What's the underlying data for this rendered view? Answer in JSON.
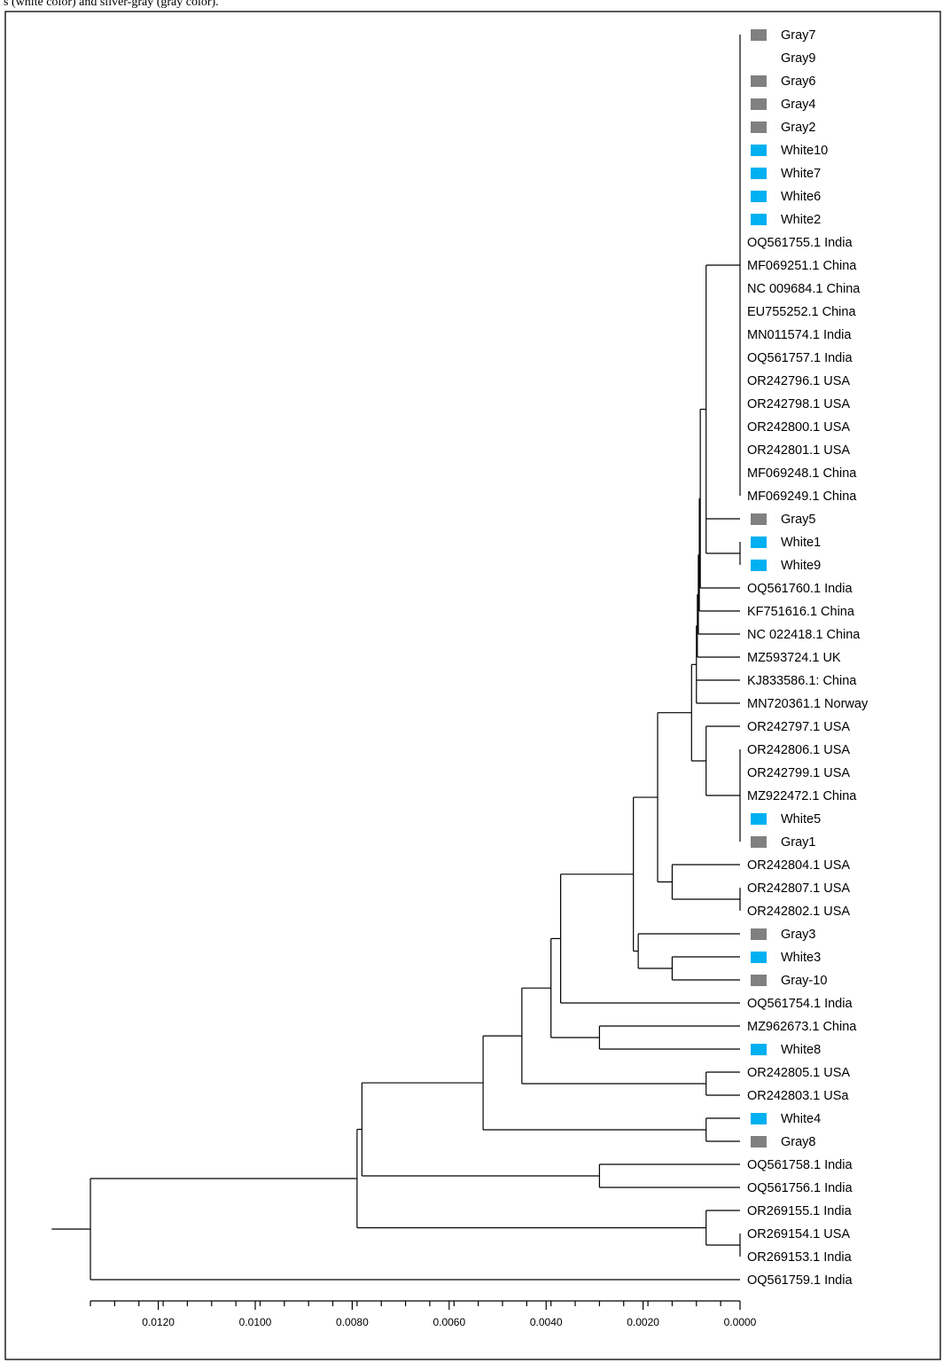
{
  "caption": "s (white color) and silver-gray (gray color).",
  "colors": {
    "gray": "#808080",
    "white": "#00b0f0",
    "line": "#000000",
    "frame": "#000000"
  },
  "tree": {
    "leaves": [
      {
        "id": "Gray7",
        "label": "Gray7",
        "marker": "gray"
      },
      {
        "id": "Gray9",
        "label": "Gray9",
        "marker": "none"
      },
      {
        "id": "Gray6",
        "label": "Gray6",
        "marker": "gray"
      },
      {
        "id": "Gray4",
        "label": "Gray4",
        "marker": "gray"
      },
      {
        "id": "Gray2",
        "label": "Gray2",
        "marker": "gray"
      },
      {
        "id": "White10",
        "label": "White10",
        "marker": "white"
      },
      {
        "id": "White7",
        "label": "White7",
        "marker": "white"
      },
      {
        "id": "White6",
        "label": "White6",
        "marker": "white"
      },
      {
        "id": "White2",
        "label": "White2",
        "marker": "white"
      },
      {
        "id": "OQ561755",
        "label": "OQ561755.1 India",
        "marker": "none"
      },
      {
        "id": "MF069251",
        "label": "MF069251.1 China",
        "marker": "none"
      },
      {
        "id": "NC009684",
        "label": "NC 009684.1 China",
        "marker": "none"
      },
      {
        "id": "EU755252",
        "label": "EU755252.1 China",
        "marker": "none"
      },
      {
        "id": "MN011574",
        "label": "MN011574.1 India",
        "marker": "none"
      },
      {
        "id": "OQ561757",
        "label": "OQ561757.1 India",
        "marker": "none"
      },
      {
        "id": "OR242796",
        "label": "OR242796.1 USA",
        "marker": "none"
      },
      {
        "id": "OR242798",
        "label": "OR242798.1 USA",
        "marker": "none"
      },
      {
        "id": "OR242800",
        "label": "OR242800.1 USA",
        "marker": "none"
      },
      {
        "id": "OR242801",
        "label": "OR242801.1 USA",
        "marker": "none"
      },
      {
        "id": "MF069248",
        "label": "MF069248.1 China",
        "marker": "none"
      },
      {
        "id": "MF069249",
        "label": "MF069249.1 China",
        "marker": "none"
      },
      {
        "id": "Gray5",
        "label": "Gray5",
        "marker": "gray"
      },
      {
        "id": "White1",
        "label": "White1",
        "marker": "white"
      },
      {
        "id": "White9",
        "label": "White9",
        "marker": "white"
      },
      {
        "id": "OQ561760",
        "label": "OQ561760.1 India",
        "marker": "none"
      },
      {
        "id": "KF751616",
        "label": "KF751616.1 China",
        "marker": "none"
      },
      {
        "id": "NC022418",
        "label": "NC 022418.1 China",
        "marker": "none"
      },
      {
        "id": "MZ593724",
        "label": "MZ593724.1 UK",
        "marker": "none"
      },
      {
        "id": "KJ833586",
        "label": "KJ833586.1: China",
        "marker": "none"
      },
      {
        "id": "MN720361",
        "label": "MN720361.1 Norway",
        "marker": "none"
      },
      {
        "id": "OR242797",
        "label": "OR242797.1 USA",
        "marker": "none"
      },
      {
        "id": "OR242806",
        "label": "OR242806.1 USA",
        "marker": "none"
      },
      {
        "id": "OR242799",
        "label": "OR242799.1 USA",
        "marker": "none"
      },
      {
        "id": "MZ922472",
        "label": "MZ922472.1 China",
        "marker": "none"
      },
      {
        "id": "White5",
        "label": "White5",
        "marker": "white"
      },
      {
        "id": "Gray1",
        "label": "Gray1",
        "marker": "gray"
      },
      {
        "id": "OR242804",
        "label": "OR242804.1 USA",
        "marker": "none"
      },
      {
        "id": "OR242807",
        "label": "OR242807.1 USA",
        "marker": "none"
      },
      {
        "id": "OR242802",
        "label": "OR242802.1 USA",
        "marker": "none"
      },
      {
        "id": "Gray3",
        "label": "Gray3",
        "marker": "gray"
      },
      {
        "id": "White3",
        "label": "White3",
        "marker": "white"
      },
      {
        "id": "Gray-10",
        "label": "Gray-10",
        "marker": "gray"
      },
      {
        "id": "OQ561754",
        "label": "OQ561754.1 India",
        "marker": "none"
      },
      {
        "id": "MZ962673",
        "label": "MZ962673.1 China",
        "marker": "none"
      },
      {
        "id": "White8",
        "label": "White8",
        "marker": "white"
      },
      {
        "id": "OR242805",
        "label": "OR242805.1 USA",
        "marker": "none"
      },
      {
        "id": "OR242803",
        "label": "OR242803.1 USa",
        "marker": "none"
      },
      {
        "id": "White4",
        "label": "White4",
        "marker": "white"
      },
      {
        "id": "Gray8",
        "label": "Gray8",
        "marker": "gray"
      },
      {
        "id": "OQ561758",
        "label": "OQ561758.1 India",
        "marker": "none"
      },
      {
        "id": "OQ561756",
        "label": "OQ561756.1 India",
        "marker": "none"
      },
      {
        "id": "OR269155",
        "label": "OR269155.1 India",
        "marker": "none"
      },
      {
        "id": "OR269154",
        "label": "OR269154.1 USA",
        "marker": "none"
      },
      {
        "id": "OR269153",
        "label": "OR269153.1 India",
        "marker": "none"
      },
      {
        "id": "OQ561759",
        "label": "OQ561759.1 India",
        "marker": "none"
      }
    ],
    "nodes": [
      {
        "id": "n_top",
        "dist": 0.0,
        "children": [
          "Gray7",
          "Gray9",
          "Gray6",
          "Gray4",
          "Gray2",
          "White10",
          "White7",
          "White6",
          "White2",
          "OQ561755",
          "MF069251",
          "NC009684",
          "EU755252",
          "MN011574",
          "OQ561757",
          "OR242796",
          "OR242798",
          "OR242800",
          "OR242801",
          "MF069248",
          "MF069249"
        ]
      },
      {
        "id": "n_w19",
        "dist": 0.0,
        "children": [
          "White1",
          "White9"
        ]
      },
      {
        "id": "n_a5",
        "dist": 0.0007,
        "children": [
          "n_top",
          "Gray5",
          "n_w19"
        ]
      },
      {
        "id": "n_a4",
        "dist": 0.00082,
        "children": [
          "n_a5",
          "OQ561760"
        ]
      },
      {
        "id": "n_a3",
        "dist": 0.00084,
        "children": [
          "n_a4",
          "KF751616"
        ]
      },
      {
        "id": "n_a2",
        "dist": 0.00086,
        "children": [
          "n_a3",
          "NC022418"
        ]
      },
      {
        "id": "n_a1",
        "dist": 0.00088,
        "children": [
          "n_a2",
          "MZ593724"
        ]
      },
      {
        "id": "n_a0",
        "dist": 0.0009,
        "children": [
          "n_a1",
          "KJ833586",
          "MN720361"
        ]
      },
      {
        "id": "n_b1",
        "dist": 0.0,
        "children": [
          "OR242806",
          "OR242799",
          "MZ922472",
          "White5",
          "Gray1"
        ]
      },
      {
        "id": "n_b",
        "dist": 0.0007,
        "children": [
          "OR242797",
          "n_b1"
        ]
      },
      {
        "id": "n_ab",
        "dist": 0.001,
        "children": [
          "n_a0",
          "n_b"
        ]
      },
      {
        "id": "n_c1",
        "dist": 0.0,
        "children": [
          "OR242807",
          "OR242802"
        ]
      },
      {
        "id": "n_c",
        "dist": 0.0014,
        "children": [
          "OR242804",
          "n_c1"
        ]
      },
      {
        "id": "n_abc",
        "dist": 0.0017,
        "children": [
          "n_ab",
          "n_c"
        ]
      },
      {
        "id": "n_d1",
        "dist": 0.0014,
        "children": [
          "White3",
          "Gray-10"
        ]
      },
      {
        "id": "n_d",
        "dist": 0.0021,
        "children": [
          "Gray3",
          "n_d1"
        ]
      },
      {
        "id": "n_abcd",
        "dist": 0.0022,
        "children": [
          "n_abc",
          "n_d"
        ]
      },
      {
        "id": "n_e",
        "dist": 0.0037,
        "children": [
          "n_abcd",
          "OQ561754"
        ]
      },
      {
        "id": "n_f",
        "dist": 0.0029,
        "children": [
          "MZ962673",
          "White8"
        ]
      },
      {
        "id": "n_ef",
        "dist": 0.0039,
        "children": [
          "n_e",
          "n_f"
        ]
      },
      {
        "id": "n_g",
        "dist": 0.0007,
        "children": [
          "OR242805",
          "OR242803"
        ]
      },
      {
        "id": "n_efg",
        "dist": 0.0045,
        "children": [
          "n_ef",
          "n_g"
        ]
      },
      {
        "id": "n_h",
        "dist": 0.0007,
        "children": [
          "White4",
          "Gray8"
        ]
      },
      {
        "id": "n_efgh",
        "dist": 0.0053,
        "children": [
          "n_efg",
          "n_h"
        ]
      },
      {
        "id": "n_i",
        "dist": 0.0029,
        "children": [
          "OQ561758",
          "OQ561756"
        ]
      },
      {
        "id": "n_j",
        "dist": 0.0078,
        "children": [
          "n_efgh",
          "n_i"
        ]
      },
      {
        "id": "n_k1",
        "dist": 0.0,
        "children": [
          "OR269154",
          "OR269153"
        ]
      },
      {
        "id": "n_k",
        "dist": 0.0007,
        "children": [
          "OR269155",
          "n_k1"
        ]
      },
      {
        "id": "n_l",
        "dist": 0.0079,
        "children": [
          "n_j",
          "n_k"
        ]
      },
      {
        "id": "n_root",
        "dist": 0.0134,
        "children": [
          "n_l",
          "OQ561759"
        ]
      }
    ],
    "root": "n_root",
    "root_stub_dist": 0.0142
  },
  "axis": {
    "ticks": [
      {
        "value": 0.012,
        "label": "0.0120"
      },
      {
        "value": 0.01,
        "label": "0.0100"
      },
      {
        "value": 0.008,
        "label": "0.0080"
      },
      {
        "value": 0.006,
        "label": "0.0060"
      },
      {
        "value": 0.004,
        "label": "0.0040"
      },
      {
        "value": 0.002,
        "label": "0.0020"
      },
      {
        "value": 0.0,
        "label": "0.0000"
      }
    ],
    "range": [
      0.0134,
      0.0
    ],
    "minor_step": 0.0005
  }
}
